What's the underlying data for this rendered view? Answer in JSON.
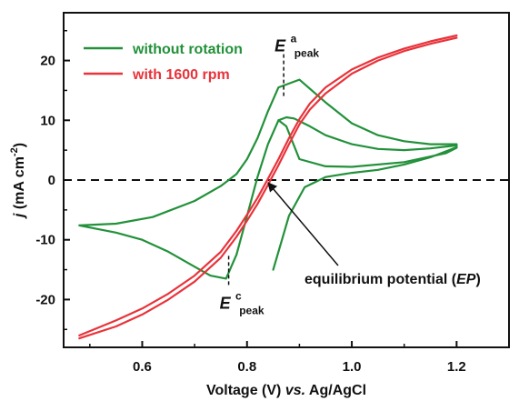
{
  "chart_data": {
    "type": "line",
    "xlabel_parts": [
      "Voltage (V) ",
      "vs.",
      " Ag/AgCl"
    ],
    "ylabel_parts": [
      "j",
      " (mA cm",
      "-2",
      ")"
    ],
    "xlim": [
      0.45,
      1.3
    ],
    "ylim": [
      -28,
      28
    ],
    "x_ticks": [
      0.6,
      0.8,
      1.0,
      1.2
    ],
    "x_tick_labels": [
      "0.6",
      "0.8",
      "1.0",
      "1.2"
    ],
    "y_ticks": [
      -20,
      -10,
      0,
      10,
      20
    ],
    "y_tick_labels": [
      "-20",
      "-10",
      "0",
      "10",
      "20"
    ],
    "grid": false,
    "legend_position": "top-left",
    "reference_line": {
      "y": 0,
      "style": "dashed"
    },
    "series": [
      {
        "name": "without rotation",
        "color": "#22913a",
        "cycles": [
          {
            "x": [
              0.48,
              0.55,
              0.62,
              0.7,
              0.75,
              0.78,
              0.8,
              0.82,
              0.84,
              0.86,
              0.9,
              0.95,
              1.0,
              1.05,
              1.1,
              1.15,
              1.2,
              1.2,
              1.18,
              1.1,
              1.0,
              0.95,
              0.9,
              0.875,
              0.86,
              0.84,
              0.82,
              0.8,
              0.78,
              0.76,
              0.73,
              0.7,
              0.65,
              0.6,
              0.55,
              0.48
            ],
            "y": [
              -7.6,
              -7.3,
              -6.2,
              -3.5,
              -1.0,
              1.0,
              3.5,
              7.0,
              11.5,
              15.5,
              16.8,
              13.0,
              9.5,
              7.5,
              6.5,
              6.0,
              6.0,
              5.4,
              4.5,
              3.0,
              2.2,
              2.3,
              3.5,
              9.0,
              10.0,
              6.0,
              0.5,
              -6.0,
              -12.5,
              -16.5,
              -16.0,
              -14.5,
              -12.0,
              -10.0,
              -8.8,
              -7.6
            ]
          },
          {
            "x": [
              0.86,
              0.875,
              0.89,
              0.92,
              0.95,
              1.0,
              1.05,
              1.1,
              1.15,
              1.2
            ],
            "y": [
              10.0,
              10.5,
              10.3,
              9.0,
              7.5,
              6.0,
              5.2,
              5.0,
              5.3,
              5.8
            ]
          },
          {
            "x": [
              0.85,
              0.88,
              0.91,
              0.95,
              1.0,
              1.05,
              1.1,
              1.15,
              1.2
            ],
            "y": [
              -15.0,
              -6.0,
              -1.2,
              0.5,
              1.2,
              1.7,
              2.6,
              3.8,
              5.5
            ]
          }
        ]
      },
      {
        "name": "with 1600 rpm",
        "color": "#e8333a",
        "cycles": [
          {
            "x": [
              0.48,
              0.55,
              0.6,
              0.65,
              0.7,
              0.75,
              0.78,
              0.8,
              0.82,
              0.84,
              0.86,
              0.88,
              0.9,
              0.92,
              0.95,
              1.0,
              1.05,
              1.1,
              1.15,
              1.2
            ],
            "y": [
              -26.0,
              -23.5,
              -21.5,
              -19.0,
              -16.0,
              -12.0,
              -8.5,
              -5.8,
              -3.0,
              0.2,
              3.5,
              7.0,
              10.2,
              12.8,
              15.5,
              18.5,
              20.5,
              22.0,
              23.2,
              24.2
            ]
          },
          {
            "x": [
              1.2,
              1.15,
              1.1,
              1.05,
              1.0,
              0.95,
              0.92,
              0.9,
              0.88,
              0.86,
              0.84,
              0.82,
              0.8,
              0.78,
              0.75,
              0.7,
              0.65,
              0.6,
              0.55,
              0.48
            ],
            "y": [
              23.8,
              22.8,
              21.6,
              20.0,
              17.8,
              14.5,
              11.8,
              9.3,
              6.0,
              2.5,
              -0.8,
              -4.0,
              -6.8,
              -9.5,
              -13.0,
              -17.0,
              -20.0,
              -22.5,
              -24.5,
              -26.5
            ]
          }
        ]
      }
    ],
    "annotations": [
      {
        "name": "anodic-peak",
        "label_main": "E",
        "label_sup": "a",
        "label_sub": "peak",
        "x": 0.87,
        "y": 16.8
      },
      {
        "name": "cathodic-peak",
        "label_main": "E",
        "label_sup": "c",
        "label_sub": "peak",
        "x": 0.765,
        "y": -16.5
      },
      {
        "name": "equilibrium-potential",
        "text_parts": [
          "equilibrium potential (",
          "EP",
          ")"
        ],
        "x": 0.835,
        "y": 0
      }
    ]
  }
}
